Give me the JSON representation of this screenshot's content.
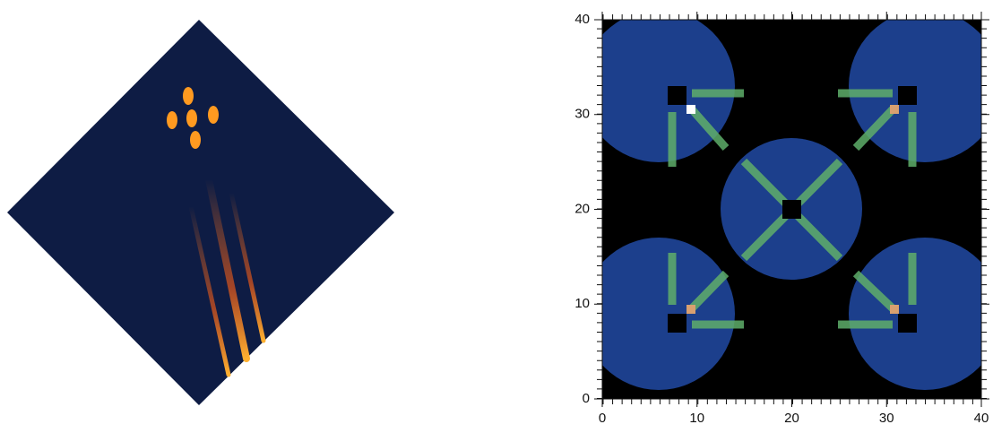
{
  "chart_data": {
    "type": "heatmap",
    "xlim": [
      0,
      40
    ],
    "ylim": [
      0,
      40
    ],
    "xticks": [
      0,
      10,
      20,
      30,
      40
    ],
    "yticks": [
      0,
      10,
      20,
      30,
      40
    ]
  }
}
